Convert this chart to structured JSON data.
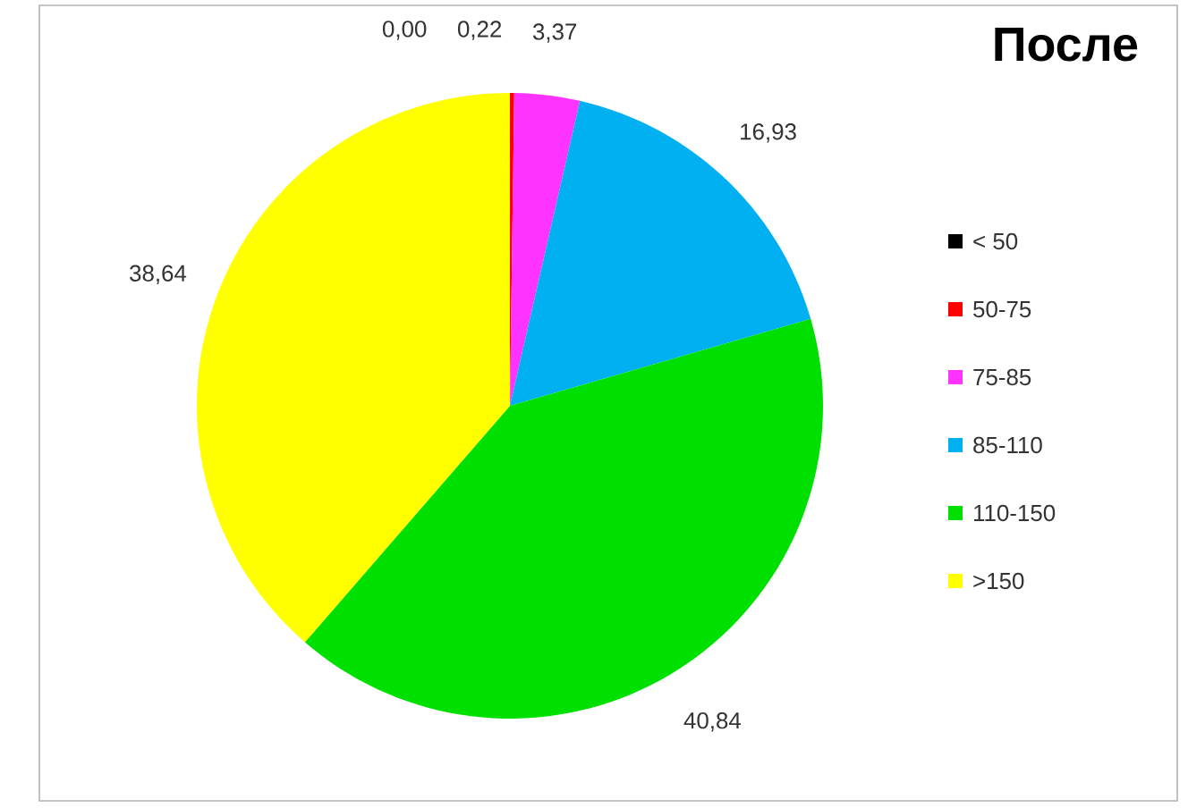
{
  "chart_data": {
    "type": "pie",
    "title": "**После**",
    "categories": [
      "< 50",
      "50-75",
      "75-85",
      "85-110",
      "110-150",
      ">150"
    ],
    "values": [
      0.0,
      0.22,
      3.37,
      16.93,
      40.84,
      38.64
    ],
    "value_labels": [
      "0,00",
      "0,22",
      "3,37",
      "16,93",
      "40,84",
      "38,64"
    ],
    "colors": [
      "#000000",
      "#ff0000",
      "#ff33ff",
      "#00b0f0",
      "#00e000",
      "#ffff00"
    ],
    "legend": "right"
  }
}
